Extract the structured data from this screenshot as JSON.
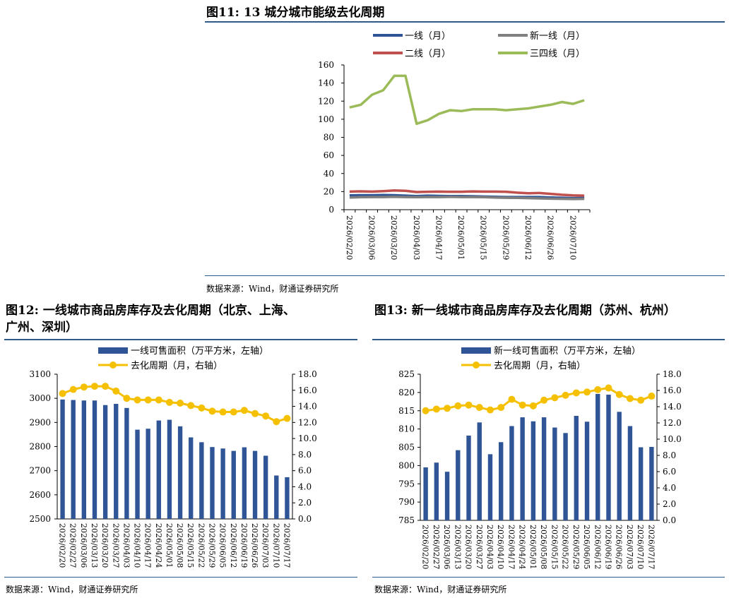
{
  "fig11": {
    "title": "图11: 13 城分城市能级去化周期",
    "source": "数据来源：Wind，财通证券研究所"
  },
  "fig12": {
    "title": "图12: 一线城市商品房库存及去化周期（北京、上海、\n广州、深圳）",
    "source": "数据来源：Wind，财通证券研究所"
  },
  "fig13": {
    "title": "图13: 新一线城市商品房库存及去化周期（苏州、杭州）",
    "source": "数据来源：Wind，财通证券研究所"
  },
  "chart_data": [
    {
      "type": "line",
      "x_ticks": [
        "2026/02/20",
        "2026/03/06",
        "2026/03/20",
        "2026/04/03",
        "2026/04/17",
        "2026/05/01",
        "2026/05/15",
        "2026/05/29",
        "2026/06/12",
        "2026/06/26",
        "2026/07/10"
      ],
      "x": [
        "2026/02/20",
        "2026/02/27",
        "2026/03/06",
        "2026/03/13",
        "2026/03/20",
        "2026/03/27",
        "2026/04/03",
        "2026/04/10",
        "2026/04/17",
        "2026/04/24",
        "2026/05/01",
        "2026/05/08",
        "2026/05/15",
        "2026/05/22",
        "2026/05/29",
        "2026/06/05",
        "2026/06/12",
        "2026/06/19",
        "2026/06/26",
        "2026/07/03",
        "2026/07/10",
        "2026/07/17"
      ],
      "ylim": [
        0,
        160
      ],
      "yticks": [
        0,
        20,
        40,
        60,
        80,
        100,
        120,
        140,
        160
      ],
      "legend_position": "top",
      "series": [
        {
          "name": "一线（月）",
          "color": "#2f5597",
          "values": [
            15.8,
            16.0,
            16.0,
            16.2,
            16.0,
            15.5,
            15.0,
            15.5,
            15.2,
            15.0,
            15.0,
            14.8,
            14.5,
            14.2,
            14.0,
            14.0,
            14.0,
            14.0,
            13.5,
            13.2,
            12.8,
            13.0
          ]
        },
        {
          "name": "新一线（月）",
          "color": "#7f7f7f",
          "values": [
            13.5,
            13.8,
            14.0,
            14.0,
            14.2,
            14.0,
            13.8,
            14.0,
            14.0,
            14.2,
            14.0,
            14.0,
            13.8,
            13.5,
            13.2,
            13.0,
            12.8,
            12.5,
            12.2,
            12.0,
            11.8,
            12.0
          ]
        },
        {
          "name": "二线（月）",
          "color": "#c0504d",
          "values": [
            20.0,
            20.3,
            20.0,
            20.5,
            21.2,
            20.8,
            19.5,
            19.8,
            20.0,
            19.8,
            19.8,
            20.2,
            20.0,
            20.0,
            19.8,
            18.8,
            18.2,
            18.4,
            17.5,
            16.5,
            15.8,
            15.5
          ]
        },
        {
          "name": "三四线（月）",
          "color": "#9bbb59",
          "values": [
            113,
            116,
            127,
            132,
            148,
            148,
            95,
            99,
            106,
            110,
            109,
            111,
            111,
            111,
            110,
            111,
            112,
            114,
            116,
            119,
            117,
            121
          ]
        }
      ]
    },
    {
      "type": "bar",
      "categories": [
        "2026/02/20",
        "2026/02/27",
        "2026/03/06",
        "2026/03/13",
        "2026/03/20",
        "2026/03/27",
        "2026/04/03",
        "2026/04/10",
        "2026/04/17",
        "2026/04/24",
        "2026/05/01",
        "2026/05/08",
        "2026/05/15",
        "2026/05/22",
        "2026/05/29",
        "2026/06/05",
        "2026/06/12",
        "2026/06/19",
        "2026/06/26",
        "2026/07/03",
        "2026/07/10",
        "2026/07/17"
      ],
      "x_ticks": [
        "2026/02/20",
        "2026/02/27",
        "2026/03/06",
        "2026/03/13",
        "2026/03/20",
        "2026/03/27",
        "2026/04/03",
        "2026/04/10",
        "2026/04/17",
        "2026/04/24",
        "2026/05/01",
        "2026/05/08",
        "2026/05/15",
        "2026/05/22",
        "2026/05/29",
        "2026/06/05",
        "2026/06/12",
        "2026/06/19",
        "2026/06/26",
        "2026/07/03",
        "2026/07/10",
        "2026/07/17"
      ],
      "ylim_left": [
        2500,
        3100
      ],
      "yticks_left": [
        2500,
        2600,
        2700,
        2800,
        2900,
        3000,
        3100
      ],
      "ylim_right": [
        0,
        18
      ],
      "yticks_right": [
        "0.0",
        "2.0",
        "4.0",
        "6.0",
        "8.0",
        "10.0",
        "12.0",
        "14.0",
        "16.0",
        "18.0"
      ],
      "legend_position": "top",
      "series": [
        {
          "name": "一线可售面积（万平方米，左轴）",
          "kind": "bar",
          "axis": "left",
          "color": "#2f5597",
          "values": [
            2995,
            2993,
            2991,
            2991,
            2972,
            2977,
            2960,
            2870,
            2874,
            2908,
            2911,
            2884,
            2838,
            2818,
            2798,
            2792,
            2782,
            2797,
            2782,
            2762,
            2680,
            2673
          ]
        },
        {
          "name": "去化周期（月，右轴）",
          "kind": "line",
          "axis": "right",
          "color": "#f5c000",
          "values": [
            15.6,
            16.1,
            16.4,
            16.5,
            16.5,
            15.9,
            15.0,
            14.8,
            14.8,
            14.8,
            14.5,
            14.4,
            14.1,
            13.8,
            13.4,
            13.3,
            13.3,
            13.5,
            13.1,
            12.8,
            12.1,
            12.5
          ]
        }
      ]
    },
    {
      "type": "bar",
      "categories": [
        "2026/02/20",
        "2026/02/27",
        "2026/03/06",
        "2026/03/13",
        "2026/03/20",
        "2026/03/27",
        "2026/04/03",
        "2026/04/10",
        "2026/04/17",
        "2026/04/24",
        "2026/05/01",
        "2026/05/08",
        "2026/05/15",
        "2026/05/22",
        "2026/05/29",
        "2026/06/05",
        "2026/06/12",
        "2026/06/19",
        "2026/06/26",
        "2026/07/03",
        "2026/07/10",
        "2026/07/17"
      ],
      "x_ticks": [
        "2026/02/20",
        "2026/02/27",
        "2026/03/06",
        "2026/03/13",
        "2026/03/20",
        "2026/03/27",
        "2026/04/03",
        "2026/04/10",
        "2026/04/17",
        "2026/04/24",
        "2026/05/01",
        "2026/05/08",
        "2026/05/15",
        "2026/05/22",
        "2026/05/29",
        "2026/06/05",
        "2026/06/12",
        "2026/06/19",
        "2026/06/26",
        "2026/07/03",
        "2026/07/10",
        "2026/07/17"
      ],
      "ylim_left": [
        785,
        825
      ],
      "yticks_left": [
        785,
        790,
        795,
        800,
        805,
        810,
        815,
        820,
        825
      ],
      "ylim_right": [
        0,
        18
      ],
      "yticks_right": [
        "0.0",
        "2.0",
        "4.0",
        "6.0",
        "8.0",
        "10.0",
        "12.0",
        "14.0",
        "16.0",
        "18.0"
      ],
      "legend_position": "top",
      "series": [
        {
          "name": "新一线可售面积（万平方米，左轴）",
          "kind": "bar",
          "axis": "left",
          "color": "#2f5597",
          "values": [
            799.5,
            800.8,
            798.3,
            804.2,
            808.2,
            811.8,
            803.1,
            806.4,
            810.8,
            813.2,
            812.1,
            813.2,
            810.4,
            808.9,
            813.6,
            812.0,
            819.6,
            819.4,
            814.7,
            810.8,
            805.0,
            805.1
          ]
        },
        {
          "name": "去化周期（月，右轴）",
          "kind": "line",
          "axis": "right",
          "color": "#f5c000",
          "values": [
            13.5,
            13.7,
            13.8,
            14.1,
            14.2,
            13.9,
            13.6,
            13.9,
            14.9,
            14.2,
            14.1,
            14.8,
            15.1,
            15.4,
            15.7,
            15.8,
            16.1,
            16.3,
            15.5,
            15.0,
            14.8,
            15.3
          ]
        }
      ]
    }
  ]
}
